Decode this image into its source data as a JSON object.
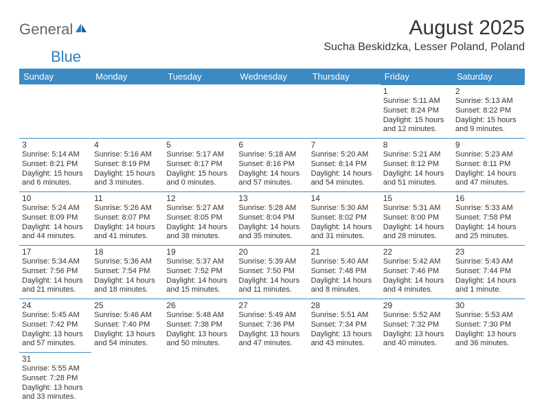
{
  "logo": {
    "text1": "General",
    "text2": "Blue"
  },
  "title": "August 2025",
  "location": "Sucha Beskidzka, Lesser Poland, Poland",
  "colors": {
    "header_bg": "#3b8ac4",
    "header_text": "#ffffff",
    "cell_border": "#3b8ac4",
    "text": "#333333",
    "logo_gray": "#666666",
    "logo_blue": "#2b7bbf",
    "background": "#ffffff"
  },
  "weekdays": [
    "Sunday",
    "Monday",
    "Tuesday",
    "Wednesday",
    "Thursday",
    "Friday",
    "Saturday"
  ],
  "weeks": [
    [
      null,
      null,
      null,
      null,
      null,
      {
        "n": "1",
        "sr": "5:11 AM",
        "ss": "8:24 PM",
        "dl": "15 hours and 12 minutes."
      },
      {
        "n": "2",
        "sr": "5:13 AM",
        "ss": "8:22 PM",
        "dl": "15 hours and 9 minutes."
      }
    ],
    [
      {
        "n": "3",
        "sr": "5:14 AM",
        "ss": "8:21 PM",
        "dl": "15 hours and 6 minutes."
      },
      {
        "n": "4",
        "sr": "5:16 AM",
        "ss": "8:19 PM",
        "dl": "15 hours and 3 minutes."
      },
      {
        "n": "5",
        "sr": "5:17 AM",
        "ss": "8:17 PM",
        "dl": "15 hours and 0 minutes."
      },
      {
        "n": "6",
        "sr": "5:18 AM",
        "ss": "8:16 PM",
        "dl": "14 hours and 57 minutes."
      },
      {
        "n": "7",
        "sr": "5:20 AM",
        "ss": "8:14 PM",
        "dl": "14 hours and 54 minutes."
      },
      {
        "n": "8",
        "sr": "5:21 AM",
        "ss": "8:12 PM",
        "dl": "14 hours and 51 minutes."
      },
      {
        "n": "9",
        "sr": "5:23 AM",
        "ss": "8:11 PM",
        "dl": "14 hours and 47 minutes."
      }
    ],
    [
      {
        "n": "10",
        "sr": "5:24 AM",
        "ss": "8:09 PM",
        "dl": "14 hours and 44 minutes."
      },
      {
        "n": "11",
        "sr": "5:26 AM",
        "ss": "8:07 PM",
        "dl": "14 hours and 41 minutes."
      },
      {
        "n": "12",
        "sr": "5:27 AM",
        "ss": "8:05 PM",
        "dl": "14 hours and 38 minutes."
      },
      {
        "n": "13",
        "sr": "5:28 AM",
        "ss": "8:04 PM",
        "dl": "14 hours and 35 minutes."
      },
      {
        "n": "14",
        "sr": "5:30 AM",
        "ss": "8:02 PM",
        "dl": "14 hours and 31 minutes."
      },
      {
        "n": "15",
        "sr": "5:31 AM",
        "ss": "8:00 PM",
        "dl": "14 hours and 28 minutes."
      },
      {
        "n": "16",
        "sr": "5:33 AM",
        "ss": "7:58 PM",
        "dl": "14 hours and 25 minutes."
      }
    ],
    [
      {
        "n": "17",
        "sr": "5:34 AM",
        "ss": "7:56 PM",
        "dl": "14 hours and 21 minutes."
      },
      {
        "n": "18",
        "sr": "5:36 AM",
        "ss": "7:54 PM",
        "dl": "14 hours and 18 minutes."
      },
      {
        "n": "19",
        "sr": "5:37 AM",
        "ss": "7:52 PM",
        "dl": "14 hours and 15 minutes."
      },
      {
        "n": "20",
        "sr": "5:39 AM",
        "ss": "7:50 PM",
        "dl": "14 hours and 11 minutes."
      },
      {
        "n": "21",
        "sr": "5:40 AM",
        "ss": "7:48 PM",
        "dl": "14 hours and 8 minutes."
      },
      {
        "n": "22",
        "sr": "5:42 AM",
        "ss": "7:46 PM",
        "dl": "14 hours and 4 minutes."
      },
      {
        "n": "23",
        "sr": "5:43 AM",
        "ss": "7:44 PM",
        "dl": "14 hours and 1 minute."
      }
    ],
    [
      {
        "n": "24",
        "sr": "5:45 AM",
        "ss": "7:42 PM",
        "dl": "13 hours and 57 minutes."
      },
      {
        "n": "25",
        "sr": "5:46 AM",
        "ss": "7:40 PM",
        "dl": "13 hours and 54 minutes."
      },
      {
        "n": "26",
        "sr": "5:48 AM",
        "ss": "7:38 PM",
        "dl": "13 hours and 50 minutes."
      },
      {
        "n": "27",
        "sr": "5:49 AM",
        "ss": "7:36 PM",
        "dl": "13 hours and 47 minutes."
      },
      {
        "n": "28",
        "sr": "5:51 AM",
        "ss": "7:34 PM",
        "dl": "13 hours and 43 minutes."
      },
      {
        "n": "29",
        "sr": "5:52 AM",
        "ss": "7:32 PM",
        "dl": "13 hours and 40 minutes."
      },
      {
        "n": "30",
        "sr": "5:53 AM",
        "ss": "7:30 PM",
        "dl": "13 hours and 36 minutes."
      }
    ],
    [
      {
        "n": "31",
        "sr": "5:55 AM",
        "ss": "7:28 PM",
        "dl": "13 hours and 33 minutes."
      },
      null,
      null,
      null,
      null,
      null,
      null
    ]
  ],
  "labels": {
    "sunrise": "Sunrise:",
    "sunset": "Sunset:",
    "daylight": "Daylight:"
  }
}
